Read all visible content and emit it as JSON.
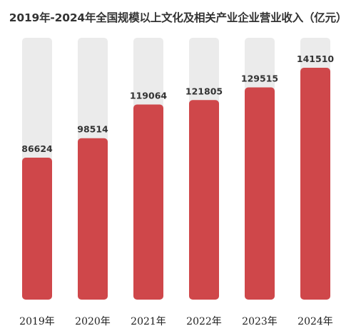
{
  "chart_data": {
    "type": "bar",
    "title": "2019年-2024年全国规模以上文化及相关产业企业营业收入（亿元）",
    "categories": [
      "2019年",
      "2020年",
      "2021年",
      "2022年",
      "2023年",
      "2024年"
    ],
    "values": [
      86624,
      98514,
      119064,
      121805,
      129515,
      141510
    ],
    "ylim": [
      0,
      141510
    ],
    "grid": false,
    "legend": "none",
    "colors": {
      "bar": "#cf474a",
      "track": "#ebebeb",
      "text": "#333333"
    }
  }
}
